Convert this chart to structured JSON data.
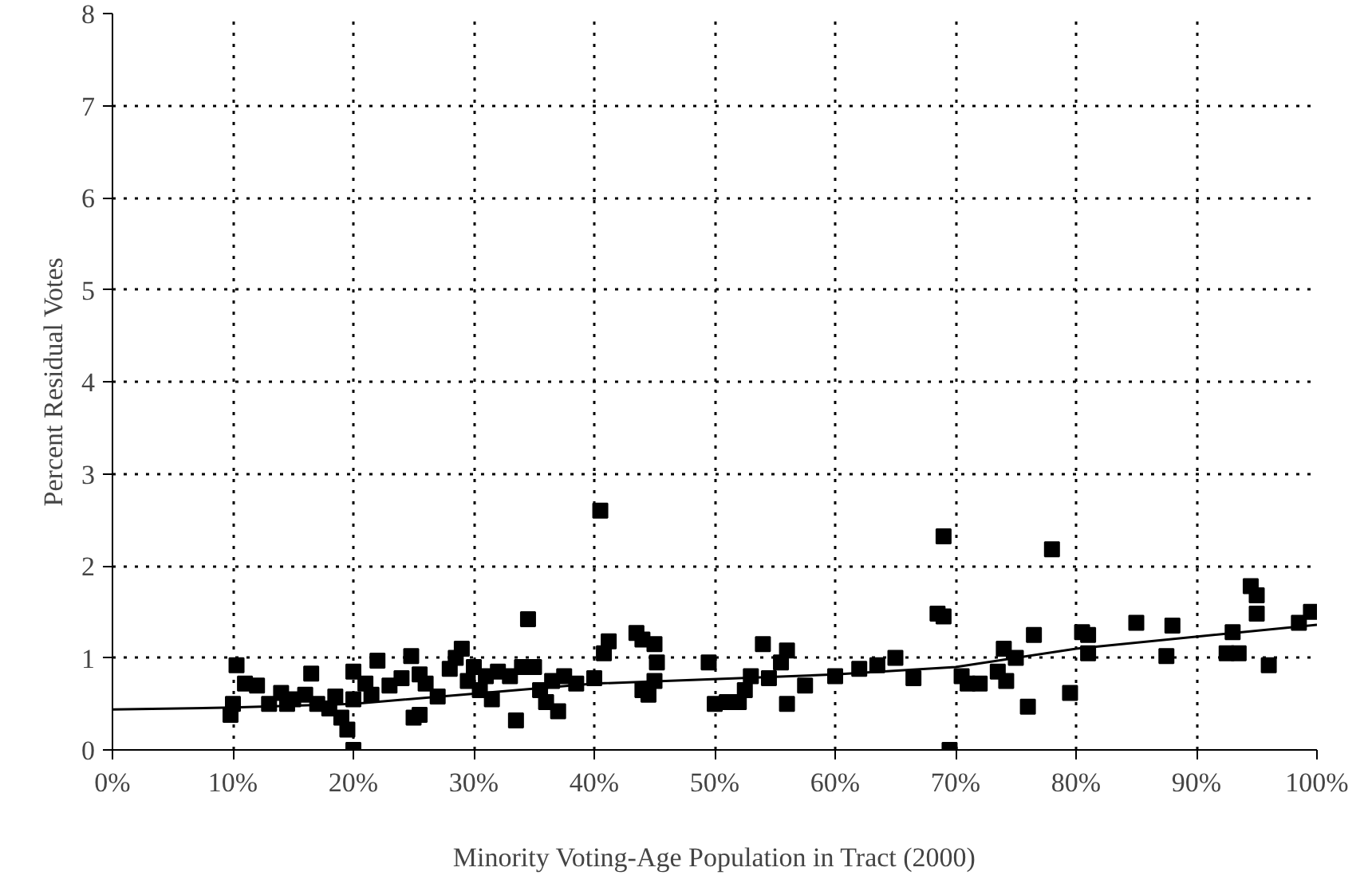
{
  "chart_data": {
    "type": "scatter",
    "xlabel": "Minority Voting-Age Population in Tract (2000)",
    "ylabel": "Percent Residual Votes",
    "xlim": [
      0,
      100
    ],
    "ylim": [
      0,
      8
    ],
    "xticks": [
      {
        "value": 0,
        "label": "0%"
      },
      {
        "value": 10,
        "label": "10%"
      },
      {
        "value": 20,
        "label": "20%"
      },
      {
        "value": 30,
        "label": "30%"
      },
      {
        "value": 40,
        "label": "40%"
      },
      {
        "value": 50,
        "label": "50%"
      },
      {
        "value": 60,
        "label": "60%"
      },
      {
        "value": 70,
        "label": "70%"
      },
      {
        "value": 80,
        "label": "80%"
      },
      {
        "value": 90,
        "label": "90%"
      },
      {
        "value": 100,
        "label": "100%"
      }
    ],
    "yticks": [
      0,
      1,
      2,
      3,
      4,
      5,
      6,
      7,
      8
    ],
    "grid": true,
    "series": [
      {
        "marker": "square",
        "color": "#000000",
        "x": [
          9.8,
          10,
          10.3,
          11,
          12,
          13,
          14,
          14.5,
          15,
          16,
          16.5,
          17,
          18,
          18.5,
          19,
          19.5,
          20,
          20,
          20,
          21,
          21.5,
          22,
          23,
          24,
          24.8,
          25,
          25.5,
          25.5,
          26,
          27,
          28,
          28.5,
          29,
          29.5,
          30,
          30.5,
          31,
          31.5,
          32,
          33,
          33.5,
          34,
          34.5,
          35,
          35.5,
          36,
          36.5,
          37,
          37.5,
          38.5,
          40,
          40.5,
          40.8,
          41.2,
          43.5,
          44,
          44,
          44.5,
          45,
          45.2,
          45,
          49.5,
          50,
          51,
          52,
          52.5,
          53,
          54,
          54.5,
          55.5,
          56,
          56,
          57.5,
          60,
          62,
          63.5,
          65,
          66.5,
          68.5,
          69,
          69,
          69.5,
          70.5,
          71,
          72,
          73.5,
          74,
          74.2,
          75,
          76,
          76.5,
          78,
          79.5,
          80.5,
          81,
          81,
          85,
          87.5,
          88,
          92.5,
          93,
          93.5,
          94.5,
          95,
          95,
          96,
          98.5,
          99.5
        ],
        "values": [
          0.38,
          0.5,
          0.92,
          0.72,
          0.7,
          0.5,
          0.62,
          0.5,
          0.55,
          0.6,
          0.83,
          0.5,
          0.45,
          0.58,
          0.35,
          0.22,
          0.0,
          0.85,
          0.55,
          0.72,
          0.6,
          0.97,
          0.7,
          0.78,
          1.02,
          0.35,
          0.38,
          0.82,
          0.72,
          0.58,
          0.88,
          1.0,
          1.1,
          0.75,
          0.9,
          0.65,
          0.8,
          0.55,
          0.85,
          0.8,
          0.32,
          0.9,
          1.42,
          0.9,
          0.65,
          0.52,
          0.75,
          0.42,
          0.8,
          0.72,
          0.78,
          2.6,
          1.05,
          1.18,
          1.27,
          1.2,
          0.65,
          0.6,
          1.15,
          0.95,
          0.75,
          0.95,
          0.5,
          0.52,
          0.52,
          0.65,
          0.8,
          1.15,
          0.78,
          0.95,
          1.08,
          0.5,
          0.7,
          0.8,
          0.88,
          0.92,
          1.0,
          0.78,
          1.48,
          1.45,
          2.32,
          0.0,
          0.8,
          0.72,
          0.72,
          0.85,
          1.1,
          0.75,
          1.0,
          0.47,
          1.25,
          2.18,
          0.62,
          1.28,
          1.05,
          1.25,
          1.38,
          1.02,
          1.35,
          1.05,
          1.28,
          1.05,
          1.78,
          1.68,
          1.48,
          0.92,
          1.38,
          1.5
        ]
      },
      {
        "type": "line",
        "marker": "none",
        "color": "#000000",
        "x": [
          0,
          10,
          20,
          40,
          60,
          70,
          80,
          100
        ],
        "values": [
          0.44,
          0.46,
          0.5,
          0.72,
          0.82,
          0.9,
          1.1,
          1.36
        ]
      }
    ]
  }
}
